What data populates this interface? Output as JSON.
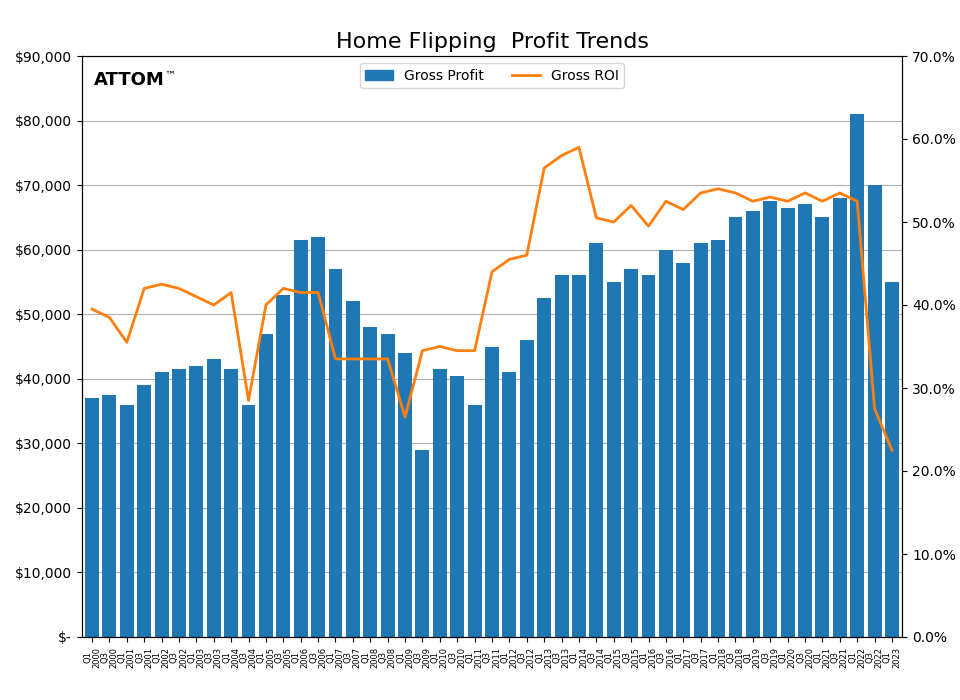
{
  "chart_data": {
    "type": "bar",
    "title": "Home Flipping  Profit Trends",
    "categories": [
      "Q1\n2000",
      "Q3\n2000",
      "Q1\n2001",
      "Q3\n2001",
      "Q1\n2002",
      "Q3\n2002",
      "Q1\n2003",
      "Q3\n2003",
      "Q1\n2004",
      "Q3\n2004",
      "Q1\n2005",
      "Q3\n2005",
      "Q1\n2006",
      "Q3\n2006",
      "Q1\n2007",
      "Q3\n2007",
      "Q1\n2008",
      "Q3\n2008",
      "Q1\n2009",
      "Q3\n2009",
      "Q1\n2010",
      "Q3\n2010",
      "Q1\n2011",
      "Q3\n2011",
      "Q1\n2012",
      "Q3\n2012",
      "Q1\n2013",
      "Q3\n2013",
      "Q1\n2014",
      "Q3\n2014",
      "Q1\n2015",
      "Q3\n2015",
      "Q1\n2016",
      "Q3\n2016",
      "Q1\n2017",
      "Q3\n2017",
      "Q1\n2018",
      "Q3\n2018",
      "Q1\n2019",
      "Q3\n2019",
      "Q1\n2020",
      "Q3\n2020",
      "Q1\n2021",
      "Q3\n2021",
      "Q1\n2022",
      "Q3\n2022",
      "Q1\n2023"
    ],
    "series": [
      {
        "name": "Gross Profit",
        "type": "bar",
        "values": [
          37000,
          37500,
          36000,
          39000,
          41000,
          41500,
          42000,
          43000,
          41500,
          36000,
          47000,
          53000,
          61500,
          62000,
          57000,
          52000,
          48000,
          47000,
          44000,
          29000,
          41500,
          40500,
          36000,
          45000,
          41000,
          46000,
          52500,
          56000,
          56000,
          61000,
          55000,
          57000,
          56000,
          60000,
          58000,
          61000,
          61500,
          65000,
          66000,
          67500,
          66500,
          67000,
          65000,
          68000,
          81000,
          70000,
          55000
        ]
      },
      {
        "name": "Gross ROI",
        "type": "line",
        "axis": "y2",
        "values": [
          0.395,
          0.385,
          0.355,
          0.42,
          0.425,
          0.42,
          0.41,
          0.4,
          0.415,
          0.285,
          0.4,
          0.42,
          0.415,
          0.415,
          0.335,
          0.335,
          0.335,
          0.335,
          0.265,
          0.345,
          0.35,
          0.345,
          0.345,
          0.44,
          0.455,
          0.46,
          0.565,
          0.58,
          0.59,
          0.505,
          0.5,
          0.52,
          0.495,
          0.525,
          0.515,
          0.535,
          0.54,
          0.535,
          0.525,
          0.53,
          0.525,
          0.535,
          0.525,
          0.535,
          0.525,
          0.275,
          0.225
        ]
      }
    ],
    "ylim": [
      0,
      90000
    ],
    "yticks": [
      {
        "value": 0,
        "label": "$-"
      },
      {
        "value": 10000,
        "label": "$10,000"
      },
      {
        "value": 20000,
        "label": "$20,000"
      },
      {
        "value": 30000,
        "label": "$30,000"
      },
      {
        "value": 40000,
        "label": "$40,000"
      },
      {
        "value": 50000,
        "label": "$50,000"
      },
      {
        "value": 60000,
        "label": "$60,000"
      },
      {
        "value": 70000,
        "label": "$70,000"
      },
      {
        "value": 80000,
        "label": "$80,000"
      },
      {
        "value": 90000,
        "label": "$90,000"
      }
    ],
    "y2lim": [
      0,
      0.7
    ],
    "y2ticks": [
      {
        "value": 0.0,
        "label": "0.0%"
      },
      {
        "value": 0.1,
        "label": "10.0%"
      },
      {
        "value": 0.2,
        "label": "20.0%"
      },
      {
        "value": 0.3,
        "label": "30.0%"
      },
      {
        "value": 0.4,
        "label": "40.0%"
      },
      {
        "value": 0.5,
        "label": "50.0%"
      },
      {
        "value": 0.6,
        "label": "60.0%"
      },
      {
        "value": 0.7,
        "label": "70.0%"
      }
    ],
    "grid": true,
    "legend": "upper center",
    "annotations": [
      "ATTOM",
      "™"
    ]
  }
}
